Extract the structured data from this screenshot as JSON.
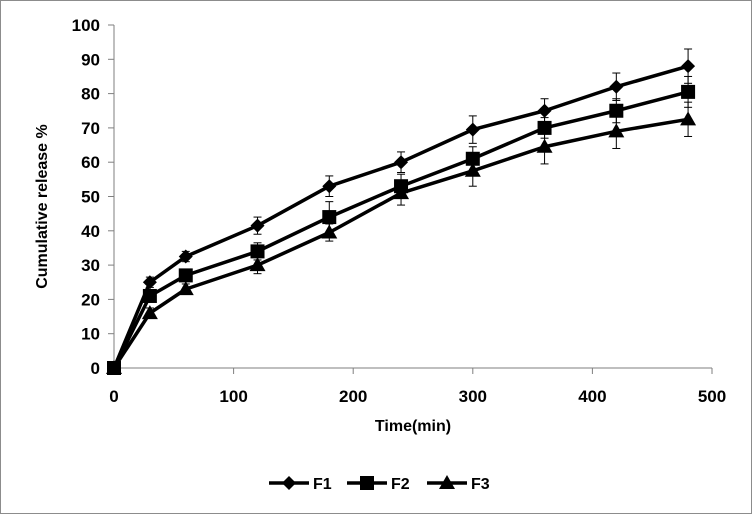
{
  "chart_data": {
    "type": "line",
    "title": "",
    "xlabel": "Time(min)",
    "ylabel": "Cumulative release %",
    "xlim": [
      0,
      500
    ],
    "ylim": [
      0,
      100
    ],
    "x_ticks": [
      0,
      100,
      200,
      300,
      400,
      500
    ],
    "y_ticks": [
      0,
      10,
      20,
      30,
      40,
      50,
      60,
      70,
      80,
      90,
      100
    ],
    "grid": false,
    "legend_position": "bottom",
    "series": [
      {
        "name": "F1",
        "marker": "diamond",
        "x": [
          0,
          30,
          60,
          120,
          180,
          240,
          300,
          360,
          420,
          480
        ],
        "y": [
          0,
          25,
          32.5,
          41.5,
          53,
          60,
          69.5,
          75,
          82,
          88
        ],
        "err": [
          0,
          1.5,
          1.5,
          2.5,
          3,
          3,
          4,
          3.5,
          4,
          5
        ]
      },
      {
        "name": "F2",
        "marker": "square",
        "x": [
          0,
          30,
          60,
          120,
          180,
          240,
          300,
          360,
          420,
          480
        ],
        "y": [
          0,
          21,
          27,
          34,
          44,
          53,
          61,
          70,
          75,
          80.5
        ],
        "err": [
          0,
          1.5,
          1.5,
          2.5,
          4.5,
          3.5,
          3.5,
          3,
          3.5,
          4.5
        ]
      },
      {
        "name": "F3",
        "marker": "triangle",
        "x": [
          0,
          30,
          60,
          120,
          180,
          240,
          300,
          360,
          420,
          480
        ],
        "y": [
          0,
          16,
          23,
          30,
          39.5,
          51,
          57.5,
          64.5,
          69,
          72.5
        ],
        "err": [
          0,
          1.5,
          1.5,
          2.5,
          2.5,
          3.5,
          4.5,
          5,
          5,
          5
        ]
      }
    ]
  }
}
